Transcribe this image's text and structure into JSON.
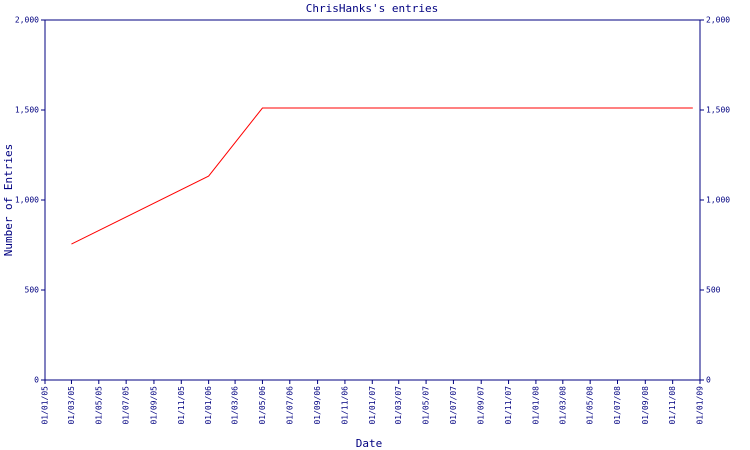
{
  "chart_data": {
    "type": "line",
    "title": "ChrisHanks's entries",
    "x_label": "Date",
    "y_label": "Number of Entries",
    "x": [
      "2005-03-01",
      "2006-01-01",
      "2006-05-01",
      "2008-12-16"
    ],
    "series": [
      {
        "name": "entries",
        "color": "#ff0000",
        "values": [
          755,
          1133,
          1511,
          1511
        ]
      }
    ],
    "xlim": [
      "2005-01-01",
      "2009-01-01"
    ],
    "xticks": [
      {
        "value": "2005-01-01",
        "label": "01/01/05"
      },
      {
        "value": "2005-03-01",
        "label": "01/03/05"
      },
      {
        "value": "2005-05-01",
        "label": "01/05/05"
      },
      {
        "value": "2005-07-01",
        "label": "01/07/05"
      },
      {
        "value": "2005-09-01",
        "label": "01/09/05"
      },
      {
        "value": "2005-11-01",
        "label": "01/11/05"
      },
      {
        "value": "2006-01-01",
        "label": "01/01/06"
      },
      {
        "value": "2006-03-01",
        "label": "01/03/06"
      },
      {
        "value": "2006-05-01",
        "label": "01/05/06"
      },
      {
        "value": "2006-07-01",
        "label": "01/07/06"
      },
      {
        "value": "2006-09-01",
        "label": "01/09/06"
      },
      {
        "value": "2006-11-01",
        "label": "01/11/06"
      },
      {
        "value": "2007-01-01",
        "label": "01/01/07"
      },
      {
        "value": "2007-03-01",
        "label": "01/03/07"
      },
      {
        "value": "2007-05-01",
        "label": "01/05/07"
      },
      {
        "value": "2007-07-01",
        "label": "01/07/07"
      },
      {
        "value": "2007-09-01",
        "label": "01/09/07"
      },
      {
        "value": "2007-11-01",
        "label": "01/11/07"
      },
      {
        "value": "2008-01-01",
        "label": "01/01/08"
      },
      {
        "value": "2008-03-01",
        "label": "01/03/08"
      },
      {
        "value": "2008-05-01",
        "label": "01/05/08"
      },
      {
        "value": "2008-07-01",
        "label": "01/07/08"
      },
      {
        "value": "2008-09-01",
        "label": "01/09/08"
      },
      {
        "value": "2008-11-01",
        "label": "01/11/08"
      },
      {
        "value": "2009-01-01",
        "label": "01/01/09"
      }
    ],
    "ylim": [
      0,
      2000
    ],
    "yticks": [
      0,
      500,
      {
        "value": 1000,
        "label": "1,000"
      },
      {
        "value": 1500,
        "label": "1,500"
      },
      {
        "value": 2000,
        "label": "2,000"
      }
    ],
    "y2lim": [
      0,
      2000
    ],
    "y2ticks": [
      0,
      500,
      {
        "value": 1000,
        "label": "1,000"
      },
      {
        "value": 1500,
        "label": "1,500"
      },
      {
        "value": 2000,
        "label": "2,000"
      }
    ],
    "axis_color": "#000080"
  }
}
